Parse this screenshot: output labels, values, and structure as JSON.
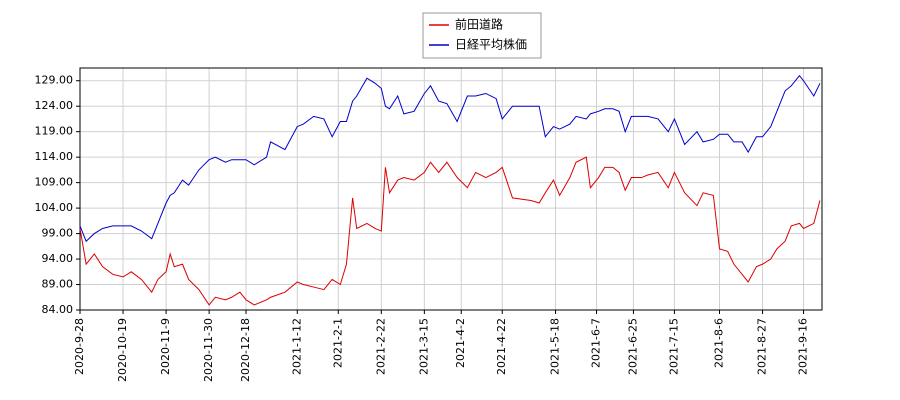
{
  "chart_data": {
    "type": "line",
    "x": [
      "2020-9-28",
      "2020-10-1",
      "2020-10-5",
      "2020-10-9",
      "2020-10-14",
      "2020-10-19",
      "2020-10-23",
      "2020-10-28",
      "2020-11-2",
      "2020-11-5",
      "2020-11-9",
      "2020-11-11",
      "2020-11-13",
      "2020-11-17",
      "2020-11-20",
      "2020-11-25",
      "2020-11-30",
      "2020-12-3",
      "2020-12-8",
      "2020-12-11",
      "2020-12-15",
      "2020-12-18",
      "2020-12-22",
      "2020-12-28",
      "2020-12-30",
      "2021-1-6",
      "2021-1-12",
      "2021-1-15",
      "2021-1-20",
      "2021-1-25",
      "2021-1-29",
      "2021-2-2",
      "2021-2-5",
      "2021-2-8",
      "2021-2-10",
      "2021-2-15",
      "2021-2-19",
      "2021-2-22",
      "2021-2-24",
      "2021-2-26",
      "2021-3-2",
      "2021-3-5",
      "2021-3-10",
      "2021-3-15",
      "2021-3-18",
      "2021-3-22",
      "2021-3-26",
      "2021-3-31",
      "2021-4-5",
      "2021-4-9",
      "2021-4-14",
      "2021-4-19",
      "2021-4-22",
      "2021-4-27",
      "2021-5-6",
      "2021-5-10",
      "2021-5-13",
      "2021-5-17",
      "2021-5-20",
      "2021-5-25",
      "2021-5-28",
      "2021-6-2",
      "2021-6-4",
      "2021-6-8",
      "2021-6-11",
      "2021-6-15",
      "2021-6-18",
      "2021-6-21",
      "2021-6-24",
      "2021-6-29",
      "2021-7-2",
      "2021-7-7",
      "2021-7-12",
      "2021-7-15",
      "2021-7-20",
      "2021-7-26",
      "2021-7-29",
      "2021-8-3",
      "2021-8-6",
      "2021-8-10",
      "2021-8-13",
      "2021-8-17",
      "2021-8-20",
      "2021-8-24",
      "2021-8-27",
      "2021-8-31",
      "2021-9-3",
      "2021-9-7",
      "2021-9-10",
      "2021-9-14",
      "2021-9-16",
      "2021-9-21",
      "2021-9-24"
    ],
    "series": [
      {
        "name": "前田道路",
        "color": "#dd0000",
        "values": [
          100,
          93,
          95,
          92.5,
          91,
          90.5,
          91.5,
          90,
          87.5,
          90,
          91.5,
          95,
          92.5,
          93,
          90,
          88,
          85,
          86.5,
          86,
          86.5,
          87.5,
          86,
          85,
          86,
          86.5,
          87.5,
          89.5,
          89,
          88.5,
          88,
          90,
          89,
          93,
          106,
          100,
          101,
          100,
          99.5,
          112,
          107,
          109.5,
          110,
          109.5,
          111,
          113,
          111,
          113,
          110,
          108,
          111,
          110,
          111,
          112,
          106,
          105.5,
          105,
          107,
          109.5,
          106.5,
          110,
          113,
          114,
          108,
          110,
          112,
          112,
          111,
          107.5,
          110,
          110,
          110.5,
          111,
          108,
          111,
          107,
          104.5,
          107,
          106.5,
          96,
          95.5,
          93,
          91,
          89.5,
          92.5,
          93,
          94,
          96,
          97.5,
          100.5,
          101,
          100,
          101,
          105.5
        ]
      },
      {
        "name": "日経平均株価",
        "color": "#0000cc",
        "values": [
          100.5,
          97.5,
          99,
          100,
          100.5,
          100.5,
          100.5,
          99.5,
          98,
          101,
          105,
          106.5,
          107,
          109.5,
          108.5,
          111.5,
          113.5,
          114,
          113,
          113.5,
          113.5,
          113.5,
          112.5,
          114,
          117,
          115.5,
          120,
          120.5,
          122,
          121.5,
          118,
          121,
          121,
          125,
          126,
          129.5,
          128.5,
          127.5,
          124,
          123.5,
          126,
          122.5,
          123,
          126.5,
          128,
          125,
          124.5,
          121,
          126,
          126,
          126.5,
          125.5,
          121.5,
          124,
          124,
          124,
          118,
          120,
          119.5,
          120.5,
          122,
          121.5,
          122.5,
          123,
          123.5,
          123.5,
          123,
          119,
          122,
          122,
          122,
          121.5,
          119,
          121.5,
          116.5,
          119,
          117,
          117.5,
          118.5,
          118.5,
          117,
          117,
          115,
          118,
          118,
          120,
          123,
          127,
          128,
          130,
          129,
          126,
          128.5
        ]
      }
    ],
    "xlim": [
      "2020-9-28",
      "2021-9-25"
    ],
    "xticks": [
      "2020-9-28",
      "2020-10-19",
      "2020-11-9",
      "2020-11-30",
      "2020-12-18",
      "2021-1-12",
      "2021-2-1",
      "2021-2-22",
      "2021-3-15",
      "2021-4-2",
      "2021-4-22",
      "2021-5-18",
      "2021-6-7",
      "2021-6-25",
      "2021-7-15",
      "2021-8-6",
      "2021-8-27",
      "2021-9-16"
    ],
    "ylim": [
      84,
      131.5
    ],
    "yticks": [
      {
        "value": 84,
        "label": "84.00"
      },
      {
        "value": 89,
        "label": "89.00"
      },
      {
        "value": 94,
        "label": "94.00"
      },
      {
        "value": 99,
        "label": "99.00"
      },
      {
        "value": 104,
        "label": "104.00"
      },
      {
        "value": 109,
        "label": "109.00"
      },
      {
        "value": 114,
        "label": "114.00"
      },
      {
        "value": 119,
        "label": "119.00"
      },
      {
        "value": 124,
        "label": "124.00"
      },
      {
        "value": 129,
        "label": "129.00"
      }
    ],
    "grid": true,
    "legend": "top"
  }
}
